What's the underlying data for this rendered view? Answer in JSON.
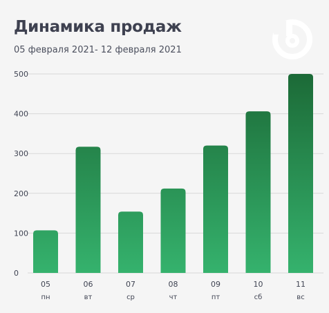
{
  "header": {
    "title": "Динамика продаж",
    "subtitle": "05 февраля 2021- 12 февраля 2021"
  },
  "logo": {
    "icon": "brand-logo-icon",
    "color": "#ffffff"
  },
  "colors": {
    "bar_light": "#35b26d",
    "bar_dark": "#1c6a37",
    "grid": "#d8d8d8",
    "text": "#3f4352"
  },
  "chart_data": {
    "type": "bar",
    "categories": [
      "05",
      "06",
      "07",
      "08",
      "09",
      "10",
      "11"
    ],
    "category_sublabels": [
      "пн",
      "вт",
      "ср",
      "чт",
      "пт",
      "сб",
      "вс"
    ],
    "values": [
      107,
      317,
      154,
      212,
      320,
      406,
      500
    ],
    "title": "Динамика продаж",
    "subtitle": "05 февраля 2021- 12 февраля 2021",
    "xlabel": "",
    "ylabel": "",
    "ylim": [
      0,
      500
    ],
    "yticks": [
      0,
      100,
      200,
      300,
      400,
      500
    ],
    "grid": true,
    "legend": "none"
  }
}
